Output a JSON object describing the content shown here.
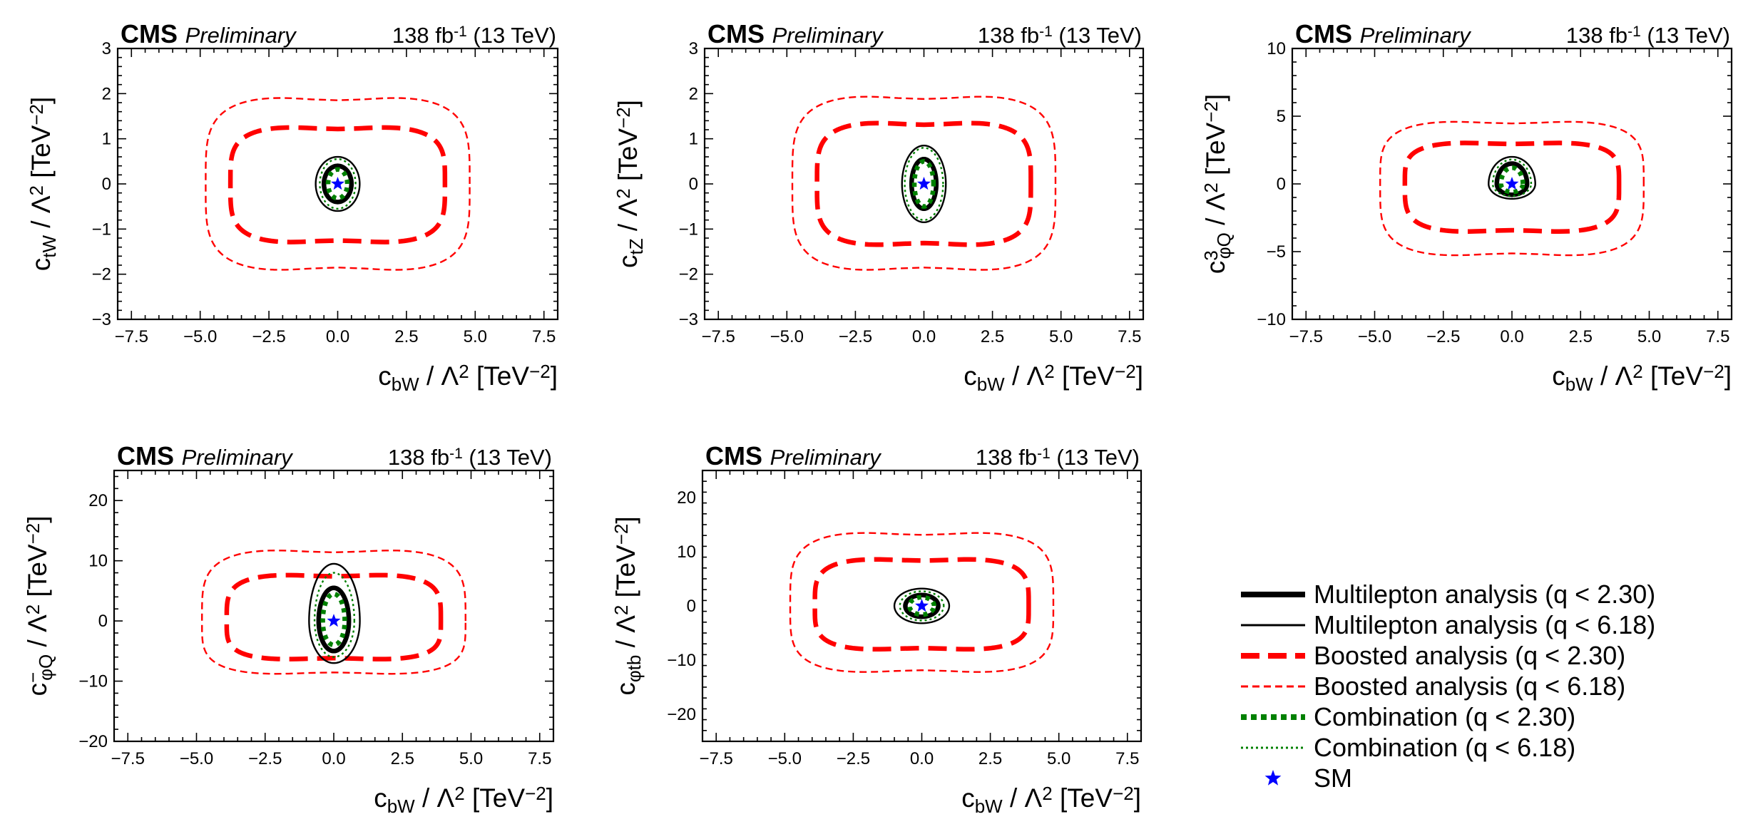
{
  "figure": {
    "experiment": "CMS",
    "status": "Preliminary",
    "lumi_value": "138",
    "lumi_unit": "fb",
    "lumi_exponent": "-1",
    "energy": "(13 TeV)",
    "legend": [
      {
        "name": "multilepton-68",
        "label": "Multilepton analysis (q < 2.30)",
        "color": "#000000",
        "style": "thick-solid"
      },
      {
        "name": "multilepton-95",
        "label": "Multilepton analysis (q < 6.18)",
        "color": "#000000",
        "style": "thin-solid"
      },
      {
        "name": "boosted-68",
        "label": "Boosted analysis (q < 2.30)",
        "color": "#ff0000",
        "style": "thick-dashed"
      },
      {
        "name": "boosted-95",
        "label": "Boosted analysis (q < 6.18)",
        "color": "#ff0000",
        "style": "thin-dashed"
      },
      {
        "name": "combination-68",
        "label": "Combination (q < 2.30)",
        "color": "#008000",
        "style": "thick-dotted"
      },
      {
        "name": "combination-95",
        "label": "Combination (q < 6.18)",
        "color": "#008000",
        "style": "thin-dotted"
      },
      {
        "name": "sm",
        "label": "SM",
        "color": "#0000ff",
        "style": "star"
      }
    ]
  },
  "chart_data": [
    {
      "type": "contour",
      "title": "CMS Preliminary 138 fb-1 (13 TeV)",
      "xlabel": "c_bW / Λ^2 [TeV^-2]",
      "ylabel": "c_tW / Λ^2 [TeV^-2]",
      "xlim": [
        -8.0,
        8.0
      ],
      "ylim": [
        -3,
        3
      ],
      "xticks": [
        -7.5,
        -5.0,
        -2.5,
        0.0,
        2.5,
        5.0,
        7.5
      ],
      "yticks": [
        -3,
        -2,
        -1,
        0,
        1,
        2,
        3
      ],
      "sm_point": [
        0,
        0
      ],
      "contours": {
        "boosted_95": {
          "x_range": [
            -4.8,
            4.8
          ],
          "y_range": [
            -1.95,
            1.95
          ]
        },
        "boosted_68": {
          "x_range": [
            -3.9,
            3.9
          ],
          "y_range": [
            -1.32,
            1.28
          ]
        },
        "multilepton_95": {
          "x_range": [
            -0.8,
            0.8
          ],
          "y_range": [
            -0.6,
            0.6
          ]
        },
        "multilepton_68": {
          "x_range": [
            -0.5,
            0.5
          ],
          "y_range": [
            -0.4,
            0.4
          ]
        },
        "combination_95": {
          "x_range": [
            -0.65,
            0.65
          ],
          "y_range": [
            -0.55,
            0.55
          ]
        },
        "combination_68": {
          "x_range": [
            -0.35,
            0.35
          ],
          "y_range": [
            -0.32,
            0.32
          ]
        }
      }
    },
    {
      "type": "contour",
      "title": "CMS Preliminary 138 fb-1 (13 TeV)",
      "xlabel": "c_bW / Λ^2 [TeV^-2]",
      "ylabel": "c_tZ / Λ^2 [TeV^-2]",
      "xlim": [
        -8.0,
        8.0
      ],
      "ylim": [
        -3,
        3
      ],
      "xticks": [
        -7.5,
        -5.0,
        -2.5,
        0.0,
        2.5,
        5.0,
        7.5
      ],
      "yticks": [
        -3,
        -2,
        -1,
        0,
        1,
        2,
        3
      ],
      "sm_point": [
        0,
        0
      ],
      "contours": {
        "boosted_95": {
          "x_range": [
            -4.8,
            4.8
          ],
          "y_range": [
            -1.95,
            1.98
          ]
        },
        "boosted_68": {
          "x_range": [
            -3.9,
            3.9
          ],
          "y_range": [
            -1.38,
            1.38
          ]
        },
        "multilepton_95": {
          "x_range": [
            -0.8,
            0.8
          ],
          "y_range": [
            -0.85,
            0.85
          ]
        },
        "multilepton_68": {
          "x_range": [
            -0.45,
            0.45
          ],
          "y_range": [
            -0.55,
            0.55
          ]
        },
        "combination_95": {
          "x_range": [
            -0.7,
            0.7
          ],
          "y_range": [
            -0.8,
            0.8
          ]
        },
        "combination_68": {
          "x_range": [
            -0.35,
            0.35
          ],
          "y_range": [
            -0.5,
            0.5
          ]
        }
      }
    },
    {
      "type": "contour",
      "title": "CMS Preliminary 138 fb-1 (13 TeV)",
      "xlabel": "c_bW / Λ^2 [TeV^-2]",
      "ylabel": "c^3_φQ / Λ^2 [TeV^-2]",
      "xlim": [
        -8.0,
        8.0
      ],
      "ylim": [
        -10,
        10
      ],
      "xticks": [
        -7.5,
        -5.0,
        -2.5,
        0.0,
        2.5,
        5.0,
        7.5
      ],
      "yticks": [
        -10,
        -5,
        0,
        5,
        10
      ],
      "sm_point": [
        0,
        0
      ],
      "contours": {
        "boosted_95": {
          "x_range": [
            -4.8,
            4.8
          ],
          "y_range": [
            -5.4,
            4.7
          ]
        },
        "boosted_68": {
          "x_range": [
            -3.9,
            3.9
          ],
          "y_range": [
            -3.6,
            3.1
          ]
        },
        "multilepton_95": {
          "x_range": [
            -0.85,
            0.85
          ],
          "y_range": [
            -1.1,
            2.0
          ]
        },
        "multilepton_68": {
          "x_range": [
            -0.55,
            0.55
          ],
          "y_range": [
            -0.8,
            1.5
          ]
        },
        "combination_95": {
          "x_range": [
            -0.7,
            0.7
          ],
          "y_range": [
            -0.9,
            1.8
          ]
        },
        "combination_68": {
          "x_range": [
            -0.4,
            0.4
          ],
          "y_range": [
            -0.6,
            1.2
          ]
        }
      }
    },
    {
      "type": "contour",
      "title": "CMS Preliminary 138 fb-1 (13 TeV)",
      "xlabel": "c_bW / Λ^2 [TeV^-2]",
      "ylabel": "c^-_φQ / Λ^2 [TeV^-2]",
      "xlim": [
        -8.0,
        8.0
      ],
      "ylim": [
        -20,
        25
      ],
      "xticks": [
        -7.5,
        -5.0,
        -2.5,
        0.0,
        2.5,
        5.0,
        7.5
      ],
      "yticks": [
        -20,
        -10,
        0,
        10,
        20
      ],
      "sm_point": [
        0,
        0
      ],
      "contours": {
        "boosted_95": {
          "x_range": [
            -4.8,
            4.8
          ],
          "y_range": [
            -9.0,
            12.0
          ]
        },
        "boosted_68": {
          "x_range": [
            -3.9,
            3.9
          ],
          "y_range": [
            -6.5,
            7.8
          ]
        },
        "multilepton_95": {
          "x_range": [
            -0.9,
            0.95
          ],
          "y_range": [
            -7.0,
            9.5
          ]
        },
        "multilepton_68": {
          "x_range": [
            -0.55,
            0.55
          ],
          "y_range": [
            -5.0,
            5.5
          ]
        },
        "combination_95": {
          "x_range": [
            -0.7,
            0.75
          ],
          "y_range": [
            -6.0,
            8.0
          ]
        },
        "combination_68": {
          "x_range": [
            -0.4,
            0.4
          ],
          "y_range": [
            -4.0,
            4.5
          ]
        }
      }
    },
    {
      "type": "contour",
      "title": "CMS Preliminary 138 fb-1 (13 TeV)",
      "xlabel": "c_bW / Λ^2 [TeV^-2]",
      "ylabel": "c_φtb / Λ^2 [TeV^-2]",
      "xlim": [
        -8.0,
        8.0
      ],
      "ylim": [
        -25,
        25
      ],
      "xticks": [
        -7.5,
        -5.0,
        -2.5,
        0.0,
        2.5,
        5.0,
        7.5
      ],
      "yticks": [
        -20,
        -10,
        0,
        10,
        20
      ],
      "sm_point": [
        0,
        0
      ],
      "contours": {
        "boosted_95": {
          "x_range": [
            -4.8,
            4.8
          ],
          "y_range": [
            -12.5,
            13.8
          ]
        },
        "boosted_68": {
          "x_range": [
            -3.9,
            3.9
          ],
          "y_range": [
            -8.2,
            8.8
          ]
        },
        "multilepton_95": {
          "x_range": [
            -1.0,
            1.0
          ],
          "y_range": [
            -3.2,
            3.2
          ]
        },
        "multilepton_68": {
          "x_range": [
            -0.6,
            0.6
          ],
          "y_range": [
            -2.0,
            2.0
          ]
        },
        "combination_95": {
          "x_range": [
            -0.8,
            0.8
          ],
          "y_range": [
            -2.7,
            2.7
          ]
        },
        "combination_68": {
          "x_range": [
            -0.45,
            0.45
          ],
          "y_range": [
            -1.6,
            1.6
          ]
        }
      }
    }
  ]
}
